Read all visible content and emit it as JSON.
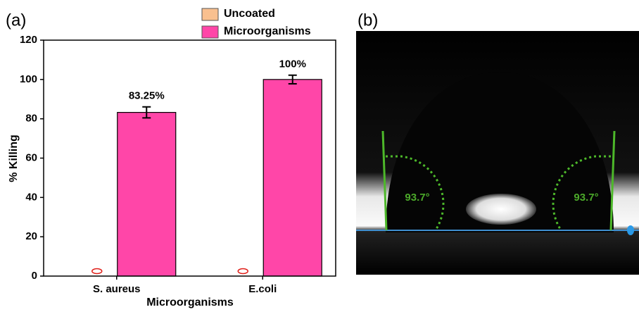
{
  "chart_data": {
    "type": "bar",
    "panel_label": "(a)",
    "y_label": "% Killing",
    "x_label": "Microorganisms",
    "categories": [
      "S. aureus",
      "E.coli"
    ],
    "series": [
      {
        "name": "Uncoated",
        "color": "#f9c08f",
        "values": [
          0,
          0
        ]
      },
      {
        "name": "Microorganisms",
        "color": "#ff46a8",
        "values": [
          83.25,
          100
        ],
        "value_labels": [
          "83.25%",
          "100%"
        ],
        "errors": [
          2.8,
          2.2
        ]
      }
    ],
    "ylim": [
      0,
      120
    ],
    "yticks": [
      0,
      20,
      40,
      60,
      80,
      100,
      120
    ]
  },
  "image_panel": {
    "label": "(b)",
    "angle_labels": [
      "93.7°",
      "93.7°"
    ]
  }
}
